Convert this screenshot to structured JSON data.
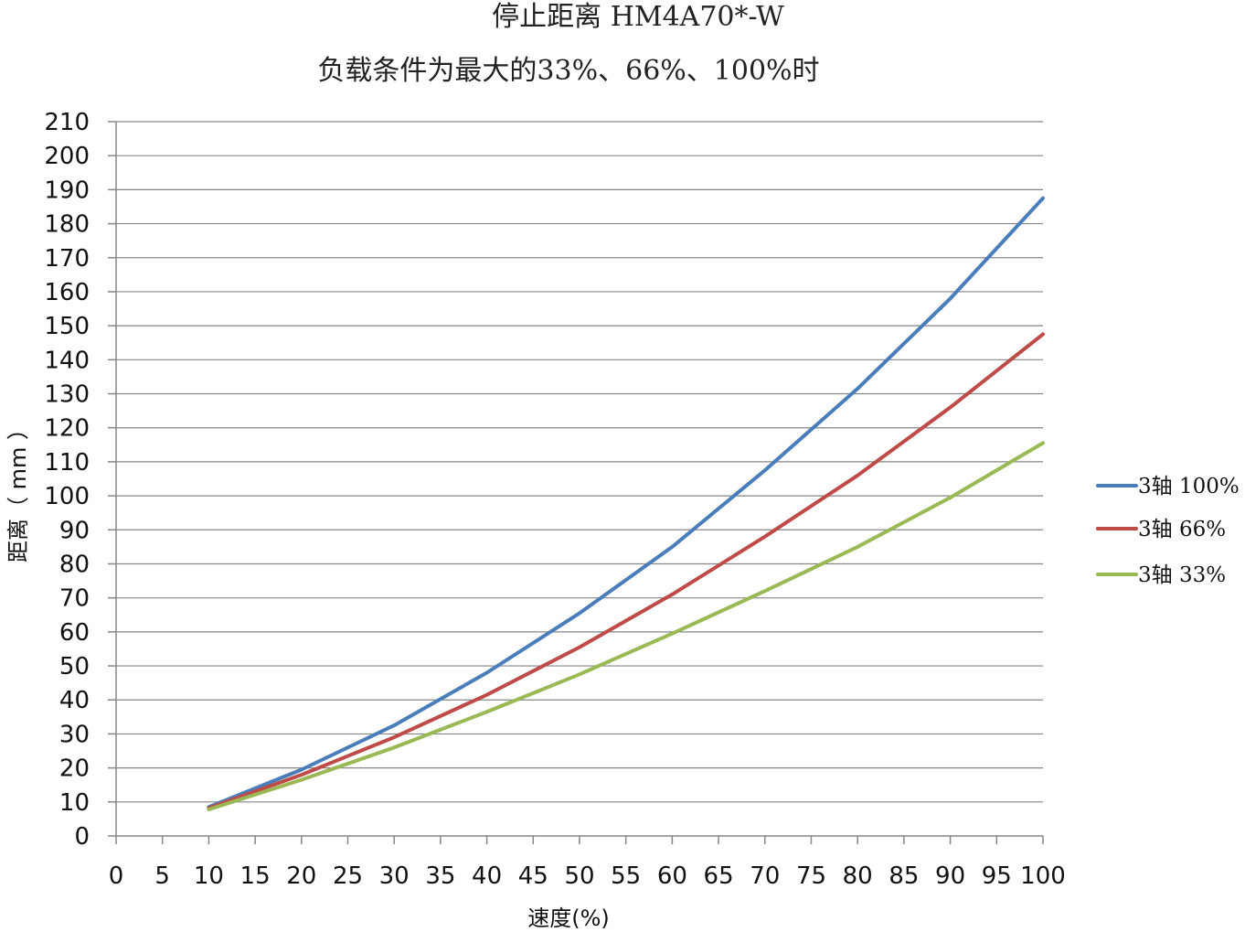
{
  "chart_data": {
    "type": "line",
    "title": "停止距离 HM4A70*-W",
    "subtitle": "负载条件为最大的33%、66%、100%时",
    "xlabel": "速度(%)",
    "ylabel": "距离（ mm ）",
    "xlim": [
      0,
      100
    ],
    "ylim": [
      0,
      210
    ],
    "x_ticks": [
      0,
      5,
      10,
      15,
      20,
      25,
      30,
      35,
      40,
      45,
      50,
      55,
      60,
      65,
      70,
      75,
      80,
      85,
      90,
      95,
      100
    ],
    "y_ticks": [
      0,
      10,
      20,
      30,
      40,
      50,
      60,
      70,
      80,
      90,
      100,
      110,
      120,
      130,
      140,
      150,
      160,
      170,
      180,
      190,
      200,
      210
    ],
    "grid": "horizontal",
    "legend_position": "right",
    "x": [
      10,
      20,
      30,
      40,
      50,
      60,
      70,
      80,
      90,
      100
    ],
    "series": [
      {
        "name": "3轴 100%",
        "color": "#4A7EBB",
        "values": [
          8.5,
          19.5,
          32.5,
          48,
          65.5,
          85,
          107.5,
          131.5,
          158,
          187.5
        ]
      },
      {
        "name": "3轴 66%",
        "color": "#BE4B48",
        "values": [
          8.2,
          18,
          29,
          41.5,
          55.5,
          71,
          88,
          106,
          126,
          147.5
        ]
      },
      {
        "name": "3轴 33%",
        "color": "#98B954",
        "values": [
          7.8,
          16.5,
          26,
          36.5,
          47.5,
          59.5,
          72,
          85,
          99.5,
          115.5
        ]
      }
    ]
  }
}
